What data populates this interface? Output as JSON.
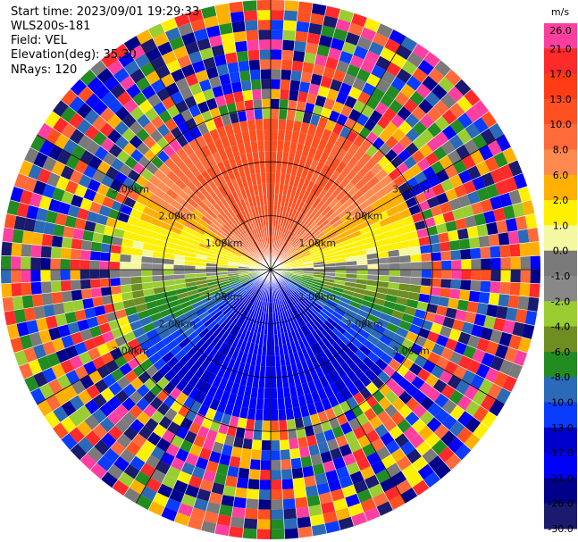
{
  "header": {
    "start_time": "Start time: 2023/09/01 19:29:33",
    "instrument": "WLS200s-181",
    "field": "Field: VEL",
    "elevation": "Elevation(deg): 35.30",
    "nrays": "NRays: 120"
  },
  "chart_data": {
    "type": "heatmap",
    "subtype": "polar PPI scan",
    "field": "VEL",
    "units": "m/s",
    "n_rays": 120,
    "range_rings_km": [
      1.0,
      2.0,
      3.0
    ],
    "ring_labels": [
      "1.00km",
      "2.00km",
      "3.00km"
    ],
    "valid_data_extent_km": 2.8,
    "max_range_km": 5.0,
    "pattern": "Gradient from about +15 m/s toward the top to about -15 m/s toward the bottom; noisy random values beyond the valid range",
    "colorbar": {
      "ticks": [
        "26.0",
        "21.0",
        "17.0",
        "13.0",
        "10.0",
        "8.0",
        "6.0",
        "2.0",
        "1.0",
        "0.0",
        "-1.0",
        "-2.0",
        "-4.0",
        "-6.0",
        "-8.0",
        "-10.0",
        "-13.0",
        "-17.0",
        "-21.0",
        "-26.0",
        "-30.0"
      ],
      "colors": [
        "#ff3fa0",
        "#ff2a2a",
        "#ff3c14",
        "#ff5022",
        "#ff6a3a",
        "#ff8a50",
        "#ffb000",
        "#fff000",
        "#f4f8a0",
        "#7a7a7a",
        "#888888",
        "#9acd32",
        "#6e8e22",
        "#228b22",
        "#2a6ab8",
        "#0a3cff",
        "#0000cd",
        "#0000ff",
        "#00008b",
        "#1a1a6e"
      ]
    },
    "grid": true
  }
}
